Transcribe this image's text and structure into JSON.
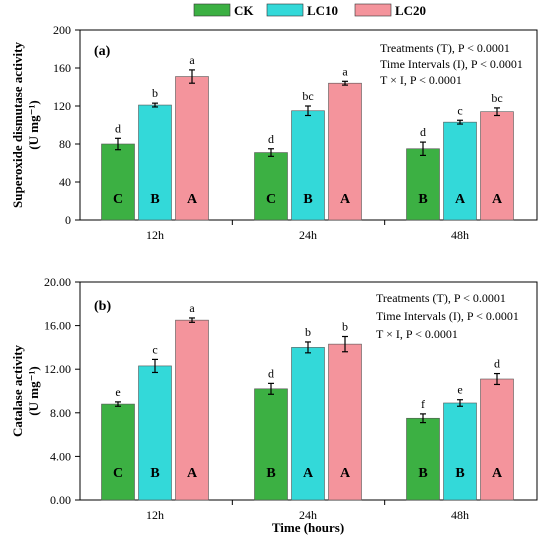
{
  "legend": {
    "items": [
      {
        "label": "CK",
        "color": "#3cb043"
      },
      {
        "label": "LC10",
        "color": "#33d9d9"
      },
      {
        "label": "LC20",
        "color": "#f4949c"
      }
    ]
  },
  "chart_data": [
    {
      "type": "bar",
      "panel_label": "(a)",
      "categories": [
        "12h",
        "24h",
        "48h"
      ],
      "ylabel_line1": "Superoxide dismutase activity",
      "ylabel_line2": "(U mg⁻¹)",
      "xlabel": "",
      "ylim": [
        0,
        200
      ],
      "yticks": [
        0,
        40,
        80,
        120,
        160,
        200
      ],
      "ytick_labels": [
        "0",
        "40",
        "80",
        "120",
        "160",
        "200"
      ],
      "grid": false,
      "annotations": [
        "Treatments (T), P < 0.0001",
        "Time Intervals (I), P < 0.0001",
        "T × I, P < 0.0001"
      ],
      "series": [
        {
          "name": "CK",
          "color": "#3cb043",
          "values": [
            80,
            71,
            75
          ],
          "errors": [
            6,
            4,
            7
          ],
          "letters_above": [
            "d",
            "d",
            "d"
          ],
          "letters_inside": [
            "C",
            "C",
            "B"
          ]
        },
        {
          "name": "LC10",
          "color": "#33d9d9",
          "values": [
            121,
            115,
            103
          ],
          "errors": [
            2,
            5,
            2
          ],
          "letters_above": [
            "b",
            "bc",
            "c"
          ],
          "letters_inside": [
            "B",
            "B",
            "A"
          ]
        },
        {
          "name": "LC20",
          "color": "#f4949c",
          "values": [
            151,
            144,
            114
          ],
          "errors": [
            7,
            2,
            4
          ],
          "letters_above": [
            "a",
            "a",
            "bc"
          ],
          "letters_inside": [
            "A",
            "A",
            "A"
          ]
        }
      ]
    },
    {
      "type": "bar",
      "panel_label": "(b)",
      "categories": [
        "12h",
        "24h",
        "48h"
      ],
      "ylabel_line1": "Catalase activity",
      "ylabel_line2": "(U mg⁻¹)",
      "xlabel": "Time (hours)",
      "ylim": [
        0,
        20
      ],
      "yticks": [
        0,
        4,
        8,
        12,
        16,
        20
      ],
      "ytick_labels": [
        "0.00",
        "4.00",
        "8.00",
        "12.00",
        "16.00",
        "20.00"
      ],
      "grid": false,
      "annotations": [
        "Treatments (T), P < 0.0001",
        "Time Intervals (I), P < 0.0001",
        "T × I, P < 0.0001"
      ],
      "series": [
        {
          "name": "CK",
          "color": "#3cb043",
          "values": [
            8.8,
            10.2,
            7.5
          ],
          "errors": [
            0.2,
            0.5,
            0.4
          ],
          "letters_above": [
            "e",
            "d",
            "f"
          ],
          "letters_inside": [
            "C",
            "B",
            "B"
          ]
        },
        {
          "name": "LC10",
          "color": "#33d9d9",
          "values": [
            12.3,
            14.0,
            8.9
          ],
          "errors": [
            0.6,
            0.5,
            0.3
          ],
          "letters_above": [
            "c",
            "b",
            "e"
          ],
          "letters_inside": [
            "B",
            "A",
            "B"
          ]
        },
        {
          "name": "LC20",
          "color": "#f4949c",
          "values": [
            16.5,
            14.3,
            11.1
          ],
          "errors": [
            0.2,
            0.7,
            0.5
          ],
          "letters_above": [
            "a",
            "b",
            "d"
          ],
          "letters_inside": [
            "A",
            "A",
            "A"
          ]
        }
      ]
    }
  ]
}
